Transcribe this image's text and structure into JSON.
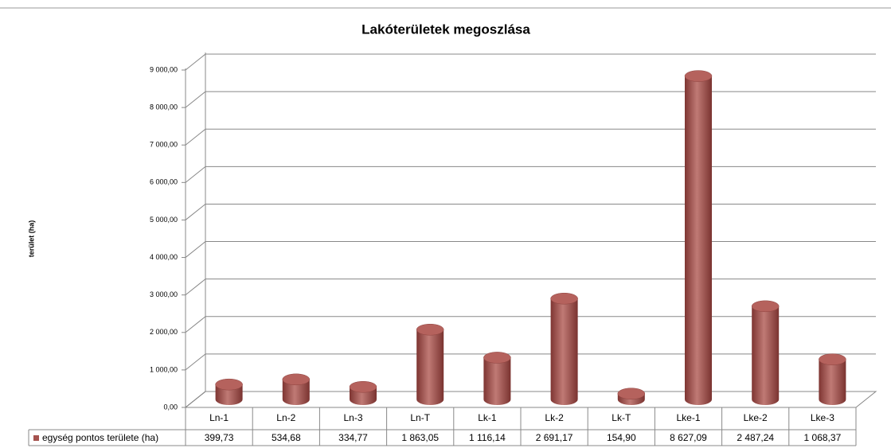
{
  "chart_data": {
    "type": "bar3d",
    "title": "Lakóterületek megoszlása",
    "y_label": "terület (ha)",
    "categories": [
      "Ln-1",
      "Ln-2",
      "Ln-3",
      "Ln-T",
      "Lk-1",
      "Lk-2",
      "Lk-T",
      "Lke-1",
      "Lke-2",
      "Lke-3"
    ],
    "series": [
      {
        "name": "egység pontos területe (ha)",
        "color": "#a5524e",
        "values": [
          399.73,
          534.68,
          334.77,
          1863.05,
          1116.14,
          2691.17,
          154.9,
          8627.09,
          2487.24,
          1068.37
        ],
        "value_labels": [
          "399,73",
          "534,68",
          "334,77",
          "1 863,05",
          "1 116,14",
          "2 691,17",
          "154,90",
          "8 627,09",
          "2 487,24",
          "1 068,37"
        ]
      }
    ],
    "ylim": [
      0,
      9000
    ],
    "yticks": [
      {
        "value": 0,
        "label": "0,00"
      },
      {
        "value": 1000,
        "label": "1 000,00"
      },
      {
        "value": 2000,
        "label": "2 000,00"
      },
      {
        "value": 3000,
        "label": "3 000,00"
      },
      {
        "value": 4000,
        "label": "4 000,00"
      },
      {
        "value": 5000,
        "label": "5 000,00"
      },
      {
        "value": 6000,
        "label": "6 000,00"
      },
      {
        "value": 7000,
        "label": "7 000,00"
      },
      {
        "value": 8000,
        "label": "8 000,00"
      },
      {
        "value": 9000,
        "label": "9 000,00"
      }
    ],
    "grid": true
  }
}
